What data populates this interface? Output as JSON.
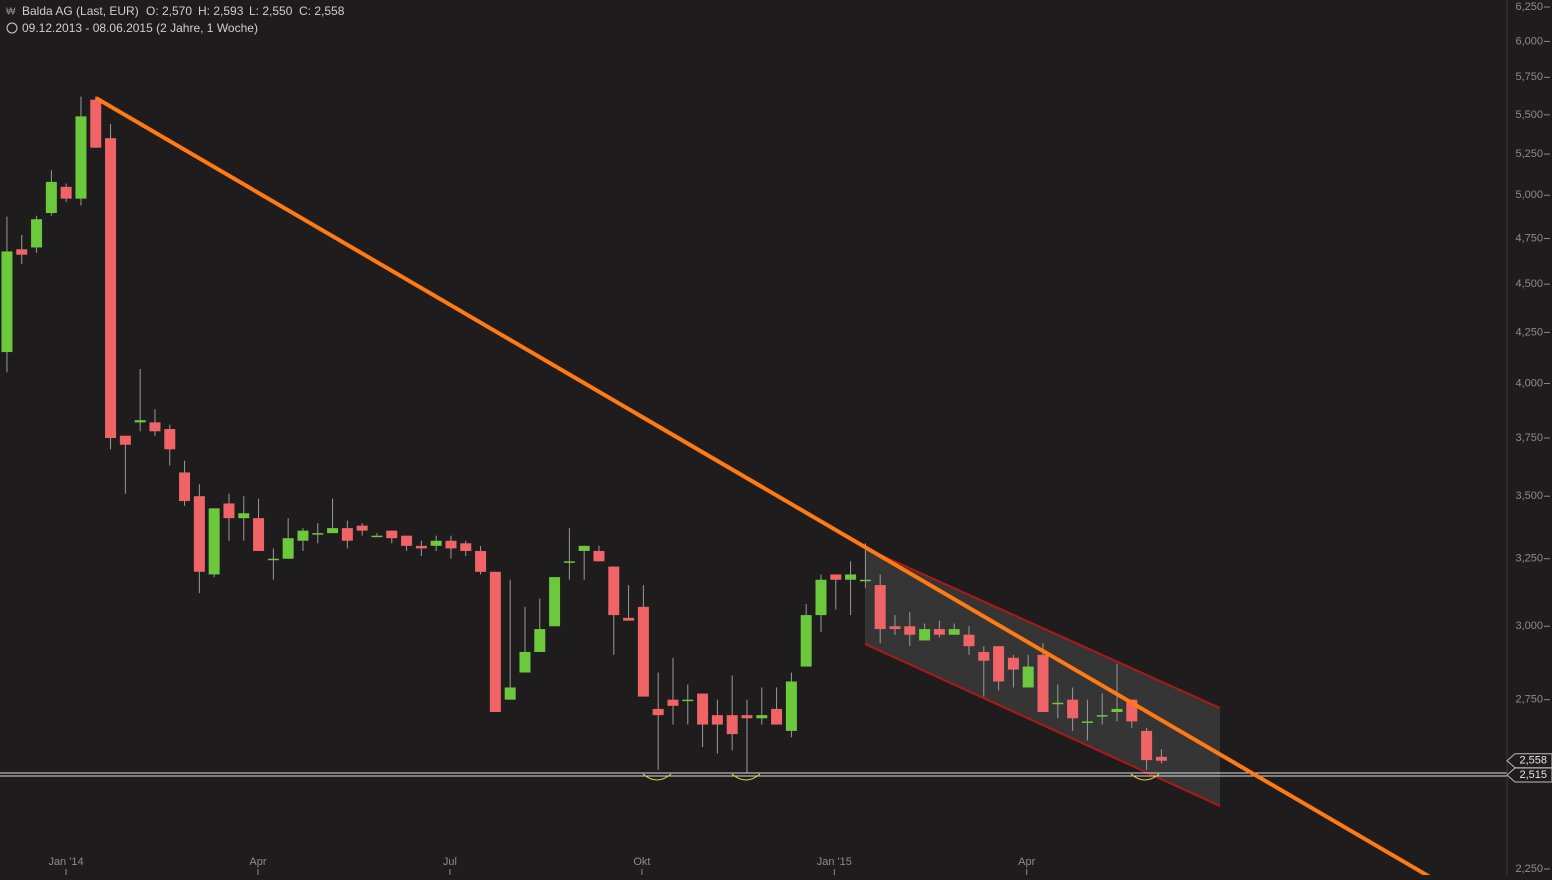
{
  "chart_data": {
    "type": "candlestick",
    "title": "Balda AG (Last, EUR)",
    "header_values": [
      "O: 2,570",
      "H: 2,593",
      "L: 2,550",
      "C: 2,558"
    ],
    "subtitle": "09.12.2013 - 08.06.2015 (2 Jahre, 1 Woche)",
    "open": [
      4.152,
      4.69,
      4.7,
      4.896,
      5.05,
      4.98,
      5.6,
      5.35,
      3.76,
      3.82,
      3.82,
      3.79,
      3.6,
      3.5,
      3.19,
      3.47,
      3.41,
      3.41,
      3.25,
      3.25,
      3.32,
      3.35,
      3.35,
      3.37,
      3.38,
      3.34,
      3.36,
      3.34,
      3.3,
      3.3,
      3.32,
      3.31,
      3.28,
      3.2,
      2.75,
      2.84,
      2.91,
      3.0,
      3.24,
      3.28,
      3.28,
      3.22,
      3.03,
      3.07,
      2.72,
      2.75,
      2.75,
      2.77,
      2.7,
      2.7,
      2.7,
      2.69,
      2.72,
      2.65,
      2.86,
      3.04,
      3.19,
      3.17,
      3.17,
      3.15,
      3.0,
      3.0,
      2.95,
      2.99,
      2.97,
      2.97,
      2.91,
      2.93,
      2.89,
      2.79,
      2.9,
      2.74,
      2.75,
      2.68,
      2.7,
      2.71,
      2.75,
      2.65,
      2.57
    ],
    "high": [
      4.875,
      4.77,
      4.88,
      5.15,
      5.07,
      5.62,
      5.62,
      5.44,
      3.76,
      4.07,
      3.88,
      3.81,
      3.65,
      3.55,
      3.45,
      3.51,
      3.5,
      3.49,
      3.29,
      3.41,
      3.37,
      3.39,
      3.49,
      3.4,
      3.39,
      3.35,
      3.36,
      3.34,
      3.32,
      3.34,
      3.34,
      3.32,
      3.3,
      3.2,
      3.17,
      3.07,
      3.1,
      3.18,
      3.37,
      3.3,
      3.3,
      3.22,
      3.15,
      3.15,
      2.84,
      2.89,
      2.8,
      2.77,
      2.75,
      2.83,
      2.75,
      2.79,
      2.79,
      2.84,
      3.08,
      3.19,
      3.19,
      3.24,
      3.31,
      3.19,
      3.04,
      3.05,
      3.01,
      3.02,
      3.01,
      3.0,
      2.93,
      2.93,
      2.9,
      2.9,
      2.94,
      2.8,
      2.79,
      2.75,
      2.77,
      2.87,
      2.75,
      2.66,
      2.593
    ],
    "low": [
      4.054,
      4.61,
      4.67,
      4.88,
      4.96,
      4.94,
      5.29,
      3.7,
      3.51,
      3.78,
      3.76,
      3.63,
      3.46,
      3.12,
      3.18,
      3.32,
      3.32,
      3.28,
      3.17,
      3.25,
      3.28,
      3.31,
      3.37,
      3.29,
      3.34,
      3.34,
      3.31,
      3.28,
      3.26,
      3.28,
      3.25,
      3.26,
      3.19,
      2.71,
      2.75,
      2.84,
      2.91,
      3.0,
      3.17,
      3.17,
      3.24,
      2.9,
      3.02,
      2.76,
      2.53,
      2.67,
      2.67,
      2.6,
      2.58,
      2.59,
      2.52,
      2.67,
      2.67,
      2.63,
      2.86,
      2.98,
      3.06,
      3.04,
      3.14,
      2.94,
      2.97,
      2.93,
      2.95,
      2.96,
      2.97,
      2.9,
      2.76,
      2.78,
      2.79,
      2.79,
      2.71,
      2.69,
      2.65,
      2.62,
      2.67,
      2.68,
      2.66,
      2.53,
      2.55
    ],
    "close": [
      4.678,
      4.66,
      4.86,
      5.08,
      4.98,
      5.49,
      5.29,
      3.75,
      3.72,
      3.83,
      3.78,
      3.7,
      3.48,
      3.2,
      3.45,
      3.41,
      3.43,
      3.28,
      3.25,
      3.33,
      3.36,
      3.35,
      3.37,
      3.32,
      3.36,
      3.34,
      3.33,
      3.3,
      3.29,
      3.32,
      3.29,
      3.28,
      3.2,
      2.71,
      2.79,
      2.91,
      2.99,
      3.18,
      3.24,
      3.3,
      3.24,
      3.04,
      3.02,
      2.76,
      2.7,
      2.73,
      2.75,
      2.67,
      2.67,
      2.64,
      2.69,
      2.7,
      2.67,
      2.81,
      3.04,
      3.17,
      3.17,
      3.19,
      3.17,
      2.99,
      2.99,
      2.97,
      2.99,
      2.97,
      2.99,
      2.93,
      2.88,
      2.81,
      2.85,
      2.86,
      2.71,
      2.74,
      2.69,
      2.68,
      2.7,
      2.72,
      2.68,
      2.56,
      2.558
    ],
    "up_color": "#6cc83c",
    "down_color": "#f06467",
    "log_scale": true,
    "ylim": [
      2.234,
      6.302
    ],
    "yticks": [
      {
        "value": 2.25,
        "label": "2,250"
      },
      {
        "value": 2.75,
        "label": "2,750"
      },
      {
        "value": 3,
        "label": "3,000"
      },
      {
        "value": 3.25,
        "label": "3,250"
      },
      {
        "value": 3.5,
        "label": "3,500"
      },
      {
        "value": 3.75,
        "label": "3,750"
      },
      {
        "value": 4,
        "label": "4,000"
      },
      {
        "value": 4.25,
        "label": "4,250"
      },
      {
        "value": 4.5,
        "label": "4,500"
      },
      {
        "value": 4.75,
        "label": "4,750"
      },
      {
        "value": 5,
        "label": "5,000"
      },
      {
        "value": 5.25,
        "label": "5,250"
      },
      {
        "value": 5.5,
        "label": "5,500"
      },
      {
        "value": 5.75,
        "label": "5,750"
      },
      {
        "value": 6,
        "label": "6,000"
      },
      {
        "value": 6.25,
        "label": "6,250"
      }
    ],
    "xlim": [
      -0.47,
      101.35
    ],
    "xticks": [
      {
        "value": 3.99,
        "label": "Jan '14"
      },
      {
        "value": 16.96,
        "label": "Apr"
      },
      {
        "value": 29.93,
        "label": "Jul"
      },
      {
        "value": 42.9,
        "label": "Okt"
      },
      {
        "value": 55.9,
        "label": "Jan '15"
      },
      {
        "value": 68.9,
        "label": "Apr"
      }
    ],
    "price_tags": [
      {
        "value": 2.558,
        "label": "2,558"
      },
      {
        "value": 2.515,
        "label": "2,515"
      }
    ]
  }
}
